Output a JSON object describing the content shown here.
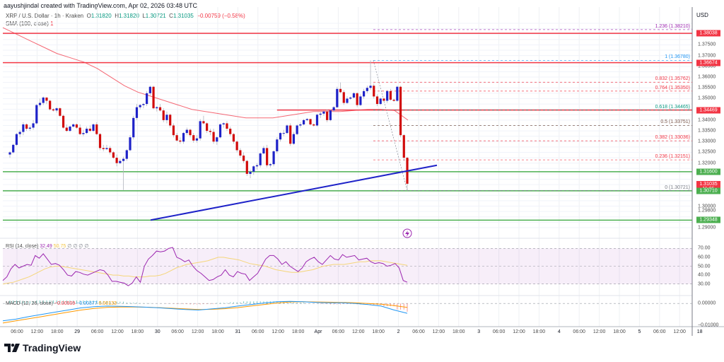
{
  "header": {
    "credit": "aayushjindal created with TradingView.com, Apr 02, 2026 03:48 UTC",
    "symbol_desc": "XRP / U.S. Dollar · 1h · Kraken",
    "open_label": "O",
    "open": "1.31820",
    "high_label": "H",
    "high": "1.31820",
    "low_label": "L",
    "low": "1.30721",
    "close_label": "C",
    "close": "1.31035",
    "change": "−0.00759 (−0.58%)",
    "sma_label": "SMA (100, close)",
    "sma_value": "1"
  },
  "price_axis": {
    "currency": "USD",
    "ticks": [
      "1.37500",
      "1.37000",
      "1.36500",
      "1.36000",
      "1.35500",
      "1.35000",
      "1.34000",
      "1.33500",
      "1.33000",
      "1.32500",
      "1.32000",
      "1.30000",
      "1.29800",
      "1.29000"
    ],
    "tags": [
      {
        "value": "1.38038",
        "color": "#f23645"
      },
      {
        "value": "1.36674",
        "color": "#f23645"
      },
      {
        "value": "1.34469",
        "color": "#f23645"
      },
      {
        "value": "1.31600",
        "color": "#4caf50"
      },
      {
        "value": "1.31035",
        "color": "#f23645",
        "sub": "11:05"
      },
      {
        "value": "1.30710",
        "color": "#4caf50"
      },
      {
        "value": "1.29348",
        "color": "#4caf50"
      }
    ]
  },
  "fib_levels": [
    {
      "ratio": "1.236",
      "price": "1.38210",
      "color": "#9c27b0"
    },
    {
      "ratio": "1",
      "price": "1.36780",
      "color": "#2196f3"
    },
    {
      "ratio": "0.832",
      "price": "1.35762",
      "color": "#f23645"
    },
    {
      "ratio": "0.764",
      "price": "1.35350",
      "color": "#f23645"
    },
    {
      "ratio": "0.618",
      "price": "1.34465",
      "color": "#089981"
    },
    {
      "ratio": "0.5",
      "price": "1.33751",
      "color": "#795548"
    },
    {
      "ratio": "0.382",
      "price": "1.33036",
      "color": "#f23645"
    },
    {
      "ratio": "0.236",
      "price": "1.32151",
      "color": "#f23645"
    },
    {
      "ratio": "0",
      "price": "1.30721",
      "color": "#787b86"
    }
  ],
  "rsi": {
    "label": "RSI (14, close)",
    "value": "32.49",
    "ma_value": "50.75",
    "extras": "∅ ∅ ∅ ∅",
    "ticks": [
      "70.00",
      "60.00",
      "50.00",
      "40.00",
      "30.00"
    ]
  },
  "macd": {
    "label": "MACD (12, 26, close)",
    "hist": "−0.00509",
    "macd": "−0.00377",
    "signal": "0.00133",
    "ticks": [
      "0.00000",
      "−0.01000"
    ]
  },
  "time_axis": [
    "06:00",
    "12:00",
    "18:00",
    "29",
    "06:00",
    "12:00",
    "18:00",
    "30",
    "06:00",
    "12:00",
    "18:00",
    "31",
    "06:00",
    "12:00",
    "18:00",
    "Apr",
    "06:00",
    "12:00",
    "18:00",
    "2",
    "06:00",
    "12:00",
    "18:00",
    "3",
    "06:00",
    "12:00",
    "18:00",
    "4",
    "06:00",
    "12:00",
    "18:00",
    "5",
    "06:00",
    "12:00",
    "18"
  ],
  "branding": {
    "logo_text": "TradingView"
  },
  "chart_data": {
    "type": "candlestick",
    "title": "XRP / U.S. Dollar · 1h · Kraken",
    "ylabel": "USD",
    "ylim": [
      1.288,
      1.386
    ],
    "grid": true,
    "candles_approx": [
      [
        1.324,
        1.3255,
        1.3225,
        1.325
      ],
      [
        1.325,
        1.329,
        1.3245,
        1.3285
      ],
      [
        1.3285,
        1.334,
        1.328,
        1.3335
      ],
      [
        1.3335,
        1.3355,
        1.332,
        1.3345
      ],
      [
        1.3345,
        1.339,
        1.333,
        1.338
      ],
      [
        1.338,
        1.3385,
        1.335,
        1.336
      ],
      [
        1.336,
        1.3375,
        1.335,
        1.3365
      ],
      [
        1.3365,
        1.34,
        1.3355,
        1.3385
      ],
      [
        1.3385,
        1.3475,
        1.338,
        1.347
      ],
      [
        1.347,
        1.35,
        1.346,
        1.348
      ],
      [
        1.348,
        1.351,
        1.347,
        1.3505
      ],
      [
        1.3505,
        1.3505,
        1.3475,
        1.349
      ],
      [
        1.349,
        1.3495,
        1.3445,
        1.345
      ],
      [
        1.345,
        1.3455,
        1.344,
        1.3445
      ],
      [
        1.3445,
        1.346,
        1.3435,
        1.3455
      ],
      [
        1.3455,
        1.346,
        1.3415,
        1.342
      ],
      [
        1.342,
        1.3425,
        1.336,
        1.3365
      ],
      [
        1.3365,
        1.338,
        1.3345,
        1.335
      ],
      [
        1.335,
        1.3375,
        1.3345,
        1.337
      ],
      [
        1.337,
        1.3385,
        1.3365,
        1.338
      ],
      [
        1.338,
        1.3385,
        1.336,
        1.3365
      ],
      [
        1.3365,
        1.338,
        1.333,
        1.3335
      ],
      [
        1.3335,
        1.3355,
        1.3325,
        1.334
      ],
      [
        1.334,
        1.337,
        1.3335,
        1.336
      ],
      [
        1.336,
        1.3375,
        1.3345,
        1.335
      ],
      [
        1.335,
        1.3385,
        1.3345,
        1.338
      ],
      [
        1.338,
        1.339,
        1.333,
        1.3335
      ],
      [
        1.3335,
        1.334,
        1.326,
        1.327
      ],
      [
        1.327,
        1.3285,
        1.3255,
        1.3265
      ],
      [
        1.3265,
        1.3285,
        1.326,
        1.327
      ],
      [
        1.327,
        1.328,
        1.324,
        1.325
      ],
      [
        1.325,
        1.3255,
        1.322,
        1.3225
      ],
      [
        1.3225,
        1.324,
        1.3185,
        1.32
      ],
      [
        1.32,
        1.322,
        1.3195,
        1.321
      ],
      [
        1.321,
        1.323,
        1.3075,
        1.322
      ],
      [
        1.322,
        1.3265,
        1.321,
        1.326
      ],
      [
        1.326,
        1.333,
        1.3255,
        1.332
      ],
      [
        1.332,
        1.342,
        1.331,
        1.341
      ],
      [
        1.341,
        1.3475,
        1.34,
        1.346
      ],
      [
        1.346,
        1.3475,
        1.345,
        1.347
      ],
      [
        1.347,
        1.348,
        1.3455,
        1.3475
      ],
      [
        1.3475,
        1.3535,
        1.3465,
        1.3525
      ],
      [
        1.3525,
        1.356,
        1.3515,
        1.3555
      ],
      [
        1.3555,
        1.356,
        1.345,
        1.3455
      ],
      [
        1.3455,
        1.3465,
        1.344,
        1.346
      ],
      [
        1.346,
        1.3475,
        1.344,
        1.3445
      ],
      [
        1.3445,
        1.3455,
        1.339,
        1.34
      ],
      [
        1.34,
        1.344,
        1.3385,
        1.3425
      ],
      [
        1.3425,
        1.343,
        1.3365,
        1.3375
      ],
      [
        1.3375,
        1.3385,
        1.332,
        1.333
      ],
      [
        1.333,
        1.334,
        1.33,
        1.3305
      ],
      [
        1.3305,
        1.332,
        1.329,
        1.33
      ],
      [
        1.33,
        1.3345,
        1.329,
        1.334
      ],
      [
        1.334,
        1.3365,
        1.333,
        1.3355
      ],
      [
        1.3355,
        1.336,
        1.332,
        1.333
      ],
      [
        1.333,
        1.334,
        1.3295,
        1.3305
      ],
      [
        1.3305,
        1.333,
        1.3295,
        1.3315
      ],
      [
        1.3315,
        1.3405,
        1.3305,
        1.3395
      ],
      [
        1.3395,
        1.342,
        1.338,
        1.3385
      ],
      [
        1.3385,
        1.339,
        1.334,
        1.335
      ],
      [
        1.335,
        1.336,
        1.333,
        1.3345
      ],
      [
        1.3345,
        1.336,
        1.329,
        1.33
      ],
      [
        1.33,
        1.3325,
        1.3285,
        1.332
      ],
      [
        1.332,
        1.3385,
        1.3315,
        1.338
      ],
      [
        1.338,
        1.339,
        1.3365,
        1.3385
      ],
      [
        1.3385,
        1.3395,
        1.335,
        1.336
      ],
      [
        1.336,
        1.337,
        1.3325,
        1.3335
      ],
      [
        1.3335,
        1.334,
        1.329,
        1.33
      ],
      [
        1.33,
        1.3305,
        1.325,
        1.326
      ],
      [
        1.326,
        1.327,
        1.3225,
        1.3235
      ],
      [
        1.3235,
        1.325,
        1.32,
        1.321
      ],
      [
        1.321,
        1.3215,
        1.314,
        1.315
      ],
      [
        1.315,
        1.317,
        1.313,
        1.316
      ],
      [
        1.316,
        1.319,
        1.3145,
        1.3185
      ],
      [
        1.3185,
        1.32,
        1.317,
        1.319
      ],
      [
        1.319,
        1.325,
        1.318,
        1.3245
      ],
      [
        1.3245,
        1.328,
        1.324,
        1.327
      ],
      [
        1.327,
        1.3285,
        1.318,
        1.319
      ],
      [
        1.319,
        1.32,
        1.318,
        1.3195
      ],
      [
        1.3195,
        1.326,
        1.3185,
        1.3255
      ],
      [
        1.3255,
        1.332,
        1.3245,
        1.331
      ],
      [
        1.331,
        1.3345,
        1.33,
        1.334
      ],
      [
        1.334,
        1.3355,
        1.3325,
        1.334
      ],
      [
        1.334,
        1.338,
        1.3335,
        1.3375
      ],
      [
        1.3375,
        1.3385,
        1.328,
        1.329
      ],
      [
        1.329,
        1.3345,
        1.3285,
        1.3335
      ],
      [
        1.3335,
        1.338,
        1.333,
        1.3375
      ],
      [
        1.3375,
        1.339,
        1.3365,
        1.338
      ],
      [
        1.338,
        1.3405,
        1.3375,
        1.34
      ],
      [
        1.34,
        1.341,
        1.3395,
        1.3405
      ],
      [
        1.3405,
        1.3405,
        1.3375,
        1.338
      ],
      [
        1.338,
        1.3385,
        1.337,
        1.3375
      ],
      [
        1.3375,
        1.343,
        1.337,
        1.3425
      ],
      [
        1.3425,
        1.344,
        1.341,
        1.343
      ],
      [
        1.343,
        1.3445,
        1.342,
        1.344
      ],
      [
        1.344,
        1.345,
        1.339,
        1.34
      ],
      [
        1.34,
        1.345,
        1.3395,
        1.3445
      ],
      [
        1.3445,
        1.3465,
        1.344,
        1.346
      ],
      [
        1.346,
        1.3555,
        1.3455,
        1.3545
      ],
      [
        1.3545,
        1.3575,
        1.3525,
        1.353
      ],
      [
        1.353,
        1.354,
        1.347,
        1.348
      ],
      [
        1.348,
        1.351,
        1.3475,
        1.35
      ],
      [
        1.35,
        1.351,
        1.3495,
        1.3505
      ],
      [
        1.3505,
        1.353,
        1.35,
        1.3525
      ],
      [
        1.3525,
        1.353,
        1.346,
        1.347
      ],
      [
        1.347,
        1.352,
        1.3465,
        1.351
      ],
      [
        1.351,
        1.3545,
        1.35,
        1.3535
      ],
      [
        1.3535,
        1.356,
        1.3525,
        1.355
      ],
      [
        1.355,
        1.3678,
        1.354,
        1.356
      ],
      [
        1.356,
        1.357,
        1.35,
        1.351
      ],
      [
        1.351,
        1.352,
        1.3465,
        1.3475
      ],
      [
        1.3475,
        1.3505,
        1.347,
        1.35
      ],
      [
        1.35,
        1.3505,
        1.3485,
        1.349
      ],
      [
        1.349,
        1.354,
        1.348,
        1.3535
      ],
      [
        1.3535,
        1.3545,
        1.349,
        1.3495
      ],
      [
        1.3495,
        1.35,
        1.3485,
        1.349
      ],
      [
        1.349,
        1.356,
        1.3485,
        1.3555
      ],
      [
        1.3555,
        1.356,
        1.332,
        1.333
      ],
      [
        1.333,
        1.3335,
        1.321,
        1.3225
      ],
      [
        1.3225,
        1.323,
        1.3072,
        1.3104
      ]
    ],
    "sma100_approx": [
      1.383,
      1.38,
      1.377,
      1.374,
      1.371,
      1.369,
      1.367,
      1.364,
      1.36,
      1.356,
      1.353,
      1.351,
      1.349,
      1.347,
      1.345,
      1.344,
      1.343,
      1.342,
      1.341,
      1.341,
      1.341,
      1.342,
      1.343,
      1.344,
      1.344,
      1.344,
      1.3445,
      1.345,
      1.345,
      1.3445,
      1.34
    ],
    "horizontal_levels": [
      {
        "price": 1.38038,
        "color": "#f23645"
      },
      {
        "price": 1.36674,
        "color": "#f23645"
      },
      {
        "price": 1.34469,
        "color": "#f23645",
        "start_index": 80
      },
      {
        "price": 1.316,
        "color": "#4caf50"
      },
      {
        "price": 1.3071,
        "color": "#4caf50"
      },
      {
        "price": 1.29348,
        "color": "#4caf50"
      }
    ],
    "trendline": {
      "from_price": 1.2935,
      "to_price": 1.3185,
      "color": "#1e22c8"
    },
    "rsi_approx": [
      34,
      38,
      47,
      52,
      48,
      50,
      52,
      51,
      62,
      59,
      64,
      58,
      52,
      53,
      51,
      46,
      40,
      39,
      44,
      43,
      41,
      40,
      42,
      44,
      46,
      45,
      40,
      33,
      33,
      32,
      31,
      28,
      31,
      38,
      32,
      50,
      58,
      62,
      67,
      66,
      67,
      70,
      71,
      60,
      58,
      55,
      57,
      50,
      45,
      42,
      38,
      34,
      35,
      38,
      40,
      46,
      40,
      38,
      44,
      42,
      41,
      34,
      38,
      42,
      50,
      58,
      62,
      62,
      58,
      52,
      55,
      50,
      47,
      44,
      48,
      55,
      58,
      60,
      55,
      52,
      57,
      62,
      58,
      57,
      63,
      60,
      61,
      62,
      57,
      58,
      59,
      55,
      53,
      54,
      53,
      50,
      51,
      53,
      48,
      34,
      32
    ],
    "rsi_ma_approx": [
      30,
      31,
      32,
      34,
      36,
      38,
      41,
      44,
      47,
      49,
      50,
      50,
      49,
      48,
      47,
      46,
      45,
      44,
      43,
      42,
      41,
      40,
      40,
      39,
      39,
      38,
      38,
      38,
      39,
      39,
      40,
      42,
      45,
      48,
      50,
      52,
      53,
      54,
      55,
      56,
      58,
      60,
      60,
      59,
      58,
      57,
      55,
      53,
      52,
      51,
      50,
      48,
      46,
      45,
      44,
      43,
      43,
      44,
      45,
      46,
      48,
      50,
      51,
      52,
      52,
      52,
      53,
      54,
      55,
      55,
      56,
      56,
      56,
      55,
      54,
      53,
      52,
      51
    ],
    "macd_approx": [
      -0.008,
      -0.0072,
      -0.006,
      -0.005,
      -0.004,
      -0.003,
      -0.002,
      -0.0015,
      -0.0012,
      -0.0013,
      -0.0015,
      -0.0017,
      -0.002,
      -0.0024,
      -0.0028,
      -0.003,
      -0.0025,
      -0.002,
      -0.0012,
      -0.0005,
      0.0002,
      0.0008,
      0.001,
      0.0008,
      0.0005,
      0.0003,
      0.0003,
      0.0,
      -0.0005,
      -0.0012,
      -0.003,
      -0.0045
    ],
    "signal_approx": [
      -0.009,
      -0.008,
      -0.007,
      -0.006,
      -0.005,
      -0.004,
      -0.003,
      -0.0023,
      -0.0018,
      -0.0016,
      -0.0016,
      -0.0017,
      -0.0019,
      -0.0022,
      -0.0025,
      -0.0028,
      -0.0027,
      -0.0024,
      -0.0019,
      -0.0012,
      -0.0005,
      0.0002,
      0.0007,
      0.0008,
      0.0007,
      0.0006,
      0.0005,
      0.0003,
      0.0,
      -0.0003,
      -0.001,
      -0.0018
    ]
  }
}
